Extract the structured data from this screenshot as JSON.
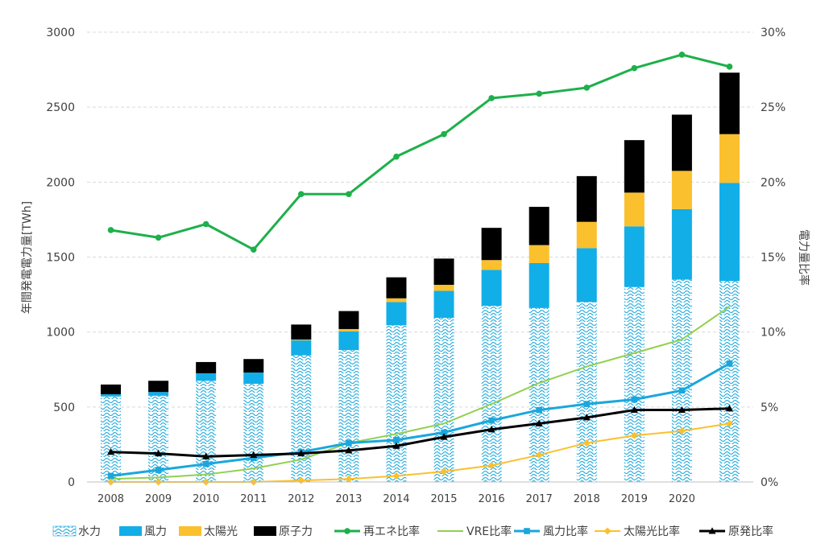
{
  "chart_data": {
    "type": "bar",
    "subtype": "stacked bar with line overlay (dual axis)",
    "categories": [
      "2008",
      "2009",
      "2010",
      "2011",
      "2012",
      "2013",
      "2014",
      "2015",
      "2016",
      "2017",
      "2018",
      "2019",
      "2020",
      ""
    ],
    "ylabel": "年間発電電力量[TWh]",
    "y2label": "電力量比率",
    "ylim": [
      0,
      3000
    ],
    "yticks": [
      0,
      500,
      1000,
      1500,
      2000,
      2500,
      3000
    ],
    "y2lim": [
      0,
      30
    ],
    "y2ticks": [
      "0%",
      "5%",
      "10%",
      "15%",
      "20%",
      "25%",
      "30%"
    ],
    "grid": true,
    "legend_position": "bottom",
    "bar_series": [
      {
        "name": "水力",
        "color": "#1aa7dc",
        "pattern": "wave",
        "values": [
          570,
          575,
          675,
          655,
          845,
          880,
          1045,
          1095,
          1175,
          1160,
          1200,
          1300,
          1350,
          1340
        ]
      },
      {
        "name": "風力",
        "color": "#12aee8",
        "values": [
          15,
          25,
          50,
          75,
          100,
          125,
          155,
          180,
          240,
          300,
          360,
          405,
          470,
          655
        ]
      },
      {
        "name": "太陽光",
        "color": "#fbc02d",
        "values": [
          0,
          0,
          0,
          0,
          5,
          15,
          25,
          40,
          65,
          120,
          175,
          225,
          255,
          325
        ]
      },
      {
        "name": "原子力",
        "color": "#000000",
        "values": [
          65,
          75,
          75,
          90,
          100,
          120,
          140,
          175,
          215,
          255,
          305,
          350,
          375,
          410
        ]
      }
    ],
    "line_series": [
      {
        "name": "再エネ比率",
        "color": "#1db04b",
        "marker": "circle",
        "axis": "right",
        "values": [
          16.8,
          16.3,
          17.2,
          15.5,
          19.2,
          19.2,
          21.7,
          23.2,
          25.6,
          25.9,
          26.3,
          27.6,
          28.5,
          27.7
        ]
      },
      {
        "name": "VRE比率",
        "color": "#92d050",
        "marker": "none",
        "axis": "right",
        "values": [
          0.2,
          0.3,
          0.5,
          0.9,
          1.5,
          2.6,
          3.2,
          3.9,
          5.2,
          6.6,
          7.7,
          8.6,
          9.5,
          11.7
        ]
      },
      {
        "name": "風力比率",
        "color": "#1aa7dc",
        "marker": "square",
        "axis": "right",
        "values": [
          0.4,
          0.8,
          1.2,
          1.6,
          2.0,
          2.6,
          2.8,
          3.3,
          4.1,
          4.8,
          5.2,
          5.5,
          6.1,
          7.9
        ]
      },
      {
        "name": "太陽光比率",
        "color": "#fbc02d",
        "marker": "diamond",
        "axis": "right",
        "values": [
          0.0,
          0.0,
          0.0,
          0.0,
          0.1,
          0.2,
          0.4,
          0.7,
          1.1,
          1.8,
          2.6,
          3.1,
          3.4,
          3.9
        ]
      },
      {
        "name": "原発比率",
        "color": "#000000",
        "marker": "triangle",
        "axis": "right",
        "values": [
          2.0,
          1.9,
          1.7,
          1.8,
          1.9,
          2.1,
          2.4,
          3.0,
          3.5,
          3.9,
          4.3,
          4.8,
          4.8,
          4.9
        ]
      }
    ]
  }
}
